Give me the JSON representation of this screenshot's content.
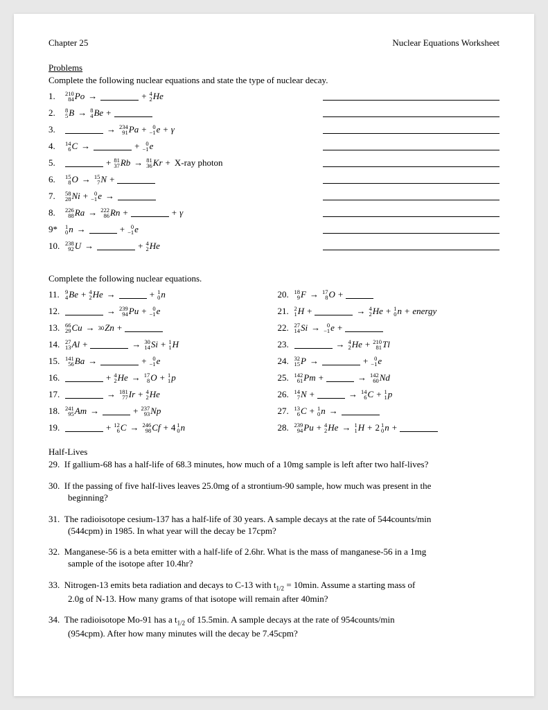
{
  "header": {
    "left": "Chapter 25",
    "right": "Nuclear Equations Worksheet"
  },
  "sections": {
    "problems_title": "Problems",
    "instr1": "Complete the following nuclear equations and state the type of nuclear decay.",
    "instr2": "Complete the following nuclear equations.",
    "halflives_title": "Half-Lives"
  },
  "nuclides": {
    "Po210": {
      "a": "210",
      "z": "84",
      "s": "Po"
    },
    "He4": {
      "a": "4",
      "z": "2",
      "s": "He"
    },
    "B8": {
      "a": "8",
      "z": "5",
      "s": "B"
    },
    "Be8": {
      "a": "8",
      "z": "4",
      "s": "Be"
    },
    "Pa234": {
      "a": "234",
      "z": "91",
      "s": "Pa"
    },
    "e0": {
      "a": "0",
      "z": "−1",
      "s": "e"
    },
    "C14": {
      "a": "14",
      "z": "6",
      "s": "C"
    },
    "Rb81": {
      "a": "81",
      "z": "37",
      "s": "Rb"
    },
    "Kr81": {
      "a": "81",
      "z": "36",
      "s": "Kr"
    },
    "O15": {
      "a": "15",
      "z": "8",
      "s": "O"
    },
    "N15": {
      "a": "15",
      "z": "7",
      "s": "N"
    },
    "Ni58": {
      "a": "58",
      "z": "28",
      "s": "Ni"
    },
    "Ra226": {
      "a": "226",
      "z": "88",
      "s": "Ra"
    },
    "Rn222": {
      "a": "222",
      "z": "86",
      "s": "Rn"
    },
    "n1": {
      "a": "1",
      "z": "0",
      "s": "n"
    },
    "U238": {
      "a": "238",
      "z": "92",
      "s": "U"
    },
    "Be9": {
      "a": "9",
      "z": "4",
      "s": "Be"
    },
    "Pu239": {
      "a": "239",
      "z": "94",
      "s": "Pu"
    },
    "Cu66": {
      "a": "66",
      "z": "29",
      "s": "Cu"
    },
    "Zn30": {
      "a": "",
      "z": "30",
      "s": "Zn"
    },
    "Al27": {
      "a": "27",
      "z": "13",
      "s": "Al"
    },
    "Si30": {
      "a": "30",
      "z": "14",
      "s": "Si"
    },
    "H1": {
      "a": "1",
      "z": "1",
      "s": "H"
    },
    "Ba141": {
      "a": "141",
      "z": "56",
      "s": "Ba"
    },
    "O17": {
      "a": "17",
      "z": "8",
      "s": "O"
    },
    "p1": {
      "a": "1",
      "z": "1",
      "s": "p"
    },
    "Ir181": {
      "a": "181",
      "z": "77",
      "s": "Ir"
    },
    "Am241": {
      "a": "241",
      "z": "95",
      "s": "Am"
    },
    "Np237": {
      "a": "237",
      "z": "93",
      "s": "Np"
    },
    "C12": {
      "a": "12",
      "z": "6",
      "s": "C"
    },
    "Cf246": {
      "a": "246",
      "z": "98",
      "s": "Cf"
    },
    "F18": {
      "a": "18",
      "z": "9",
      "s": "F"
    },
    "H2": {
      "a": "2",
      "z": "1",
      "s": "H"
    },
    "Si27": {
      "a": "27",
      "z": "14",
      "s": "Si"
    },
    "Tl210": {
      "a": "210",
      "z": "81",
      "s": "Tl"
    },
    "P32": {
      "a": "32",
      "z": "15",
      "s": "P"
    },
    "Pm142": {
      "a": "142",
      "z": "61",
      "s": "Pm"
    },
    "Nd142": {
      "a": "142",
      "z": "60",
      "s": "Nd"
    },
    "N14": {
      "a": "14",
      "z": "7",
      "s": "N"
    },
    "C14b": {
      "a": "14",
      "z": "6",
      "s": "C"
    },
    "C13": {
      "a": "13",
      "z": "6",
      "s": "C"
    },
    "Pu239b": {
      "a": "239",
      "z": "94",
      "s": "Pu"
    },
    "n1b": {
      "a": "1",
      "z": "0",
      "s": "n"
    }
  },
  "labels": {
    "xray": " X-ray photon",
    "energy": "energy",
    "four": "4",
    "two": "2"
  },
  "problems_nums": [
    "1.",
    "2.",
    "3.",
    "4.",
    "5.",
    "6.",
    "7.",
    "8.",
    "9*",
    "10."
  ],
  "problems2_nums_left": [
    "11.",
    "12.",
    "13.",
    "14.",
    "15.",
    "16.",
    "17.",
    "18.",
    "19."
  ],
  "problems2_nums_right": [
    "20.",
    "21.",
    "22.",
    "23.",
    "24.",
    "25.",
    "26.",
    "27.",
    "28."
  ],
  "word_problems": [
    {
      "n": "29.",
      "t": "If gallium-68 has a half-life of 68.3 minutes, how much of a 10mg sample is left after two half-lives?",
      "indent": ""
    },
    {
      "n": "30.",
      "t": "If the passing of five half-lives leaves 25.0mg of a strontium-90 sample, how much was present in the",
      "indent": "beginning?"
    },
    {
      "n": "31.",
      "t": "The radioisotope cesium-137 has a half-life of 30 years. A sample decays at the rate of 544counts/min",
      "indent": "(544cpm) in 1985. In what year will the decay be 17cpm?"
    },
    {
      "n": "32.",
      "t": "Manganese-56 is a beta emitter with a half-life of 2.6hr. What is the mass of manganese-56 in a 1mg",
      "indent": "sample of the isotope after 10.4hr?"
    },
    {
      "n": "33.",
      "t": "Nitrogen-13 emits beta radiation and decays to C-13 with t1/2 = 10min. Assume a starting mass of",
      "indent": "2.0g of N-13. How many grams of that isotope will remain after 40min?",
      "sub": true
    },
    {
      "n": "34.",
      "t": "The radioisotope Mo-91 has a t1/2 of 15.5min. A sample decays at the rate of 954counts/min",
      "indent": "(954cpm). After how many minutes will the decay be 7.45cpm?",
      "sub": true
    }
  ]
}
